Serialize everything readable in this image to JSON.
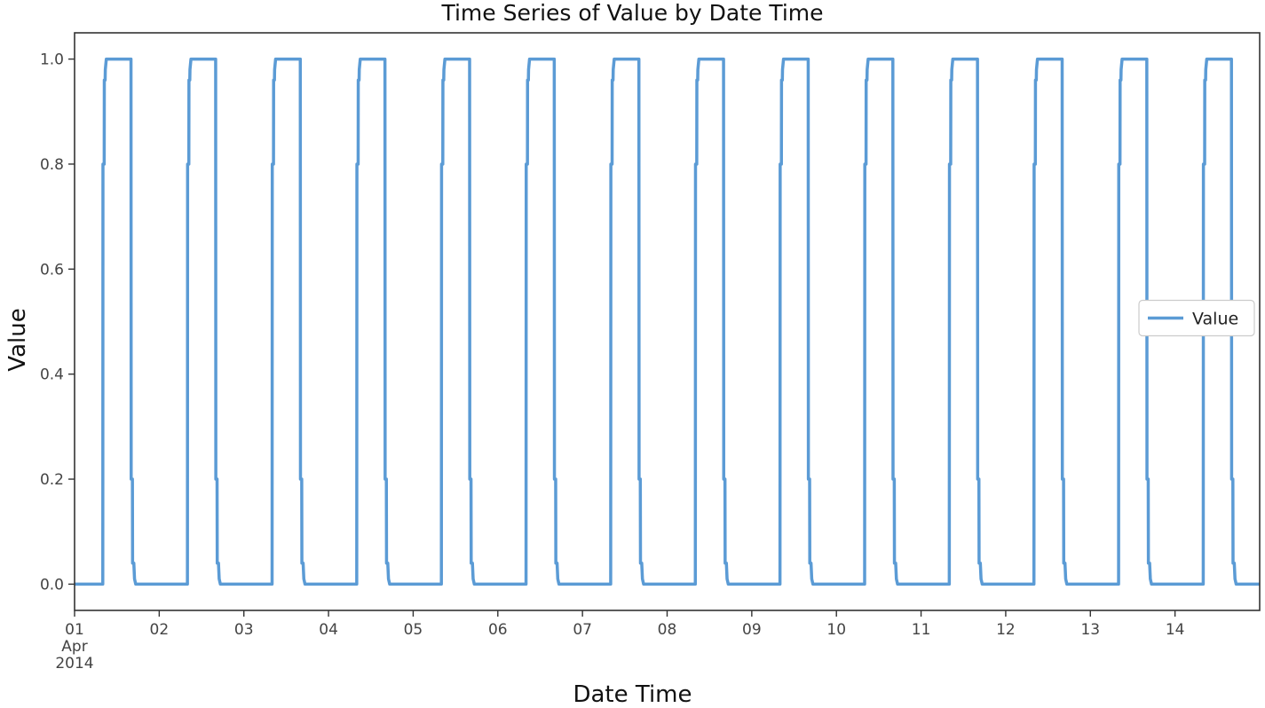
{
  "chart_data": {
    "type": "line",
    "title": "Time Series of Value by Date Time",
    "xlabel": "Date Time",
    "ylabel": "Value",
    "x_range": [
      "2014-04-01T00:00",
      "2014-04-15T00:00"
    ],
    "ylim": [
      -0.05,
      1.05
    ],
    "yticks": [
      0.0,
      0.2,
      0.4,
      0.6,
      0.8,
      1.0
    ],
    "ytick_labels": [
      "0.0",
      "0.2",
      "0.4",
      "0.6",
      "0.8",
      "1.0"
    ],
    "xticks": [
      "2014-04-01",
      "2014-04-02",
      "2014-04-03",
      "2014-04-04",
      "2014-04-05",
      "2014-04-06",
      "2014-04-07",
      "2014-04-08",
      "2014-04-09",
      "2014-04-10",
      "2014-04-11",
      "2014-04-12",
      "2014-04-13",
      "2014-04-14"
    ],
    "xtick_labels": [
      "01",
      "02",
      "03",
      "04",
      "05",
      "06",
      "07",
      "08",
      "09",
      "10",
      "11",
      "12",
      "13",
      "14"
    ],
    "xtick_sublabels": [
      "Apr",
      "2014"
    ],
    "grid": false,
    "legend": "center-right",
    "series": [
      {
        "name": "Value",
        "color": "#5b9bd5",
        "daily_pattern": [
          {
            "time": "00:00",
            "value": 0.0
          },
          {
            "time": "08:00",
            "value": 0.0
          },
          {
            "time": "08:03",
            "value": 0.8
          },
          {
            "time": "08:24",
            "value": 0.8
          },
          {
            "time": "08:26",
            "value": 0.96
          },
          {
            "time": "08:40",
            "value": 0.96
          },
          {
            "time": "08:43",
            "value": 0.98
          },
          {
            "time": "09:00",
            "value": 1.0
          },
          {
            "time": "16:00",
            "value": 1.0
          },
          {
            "time": "16:03",
            "value": 0.2
          },
          {
            "time": "16:24",
            "value": 0.2
          },
          {
            "time": "16:27",
            "value": 0.04
          },
          {
            "time": "16:48",
            "value": 0.04
          },
          {
            "time": "17:00",
            "value": 0.01
          },
          {
            "time": "17:20",
            "value": 0.0
          },
          {
            "time": "24:00",
            "value": 0.0
          }
        ]
      }
    ]
  }
}
